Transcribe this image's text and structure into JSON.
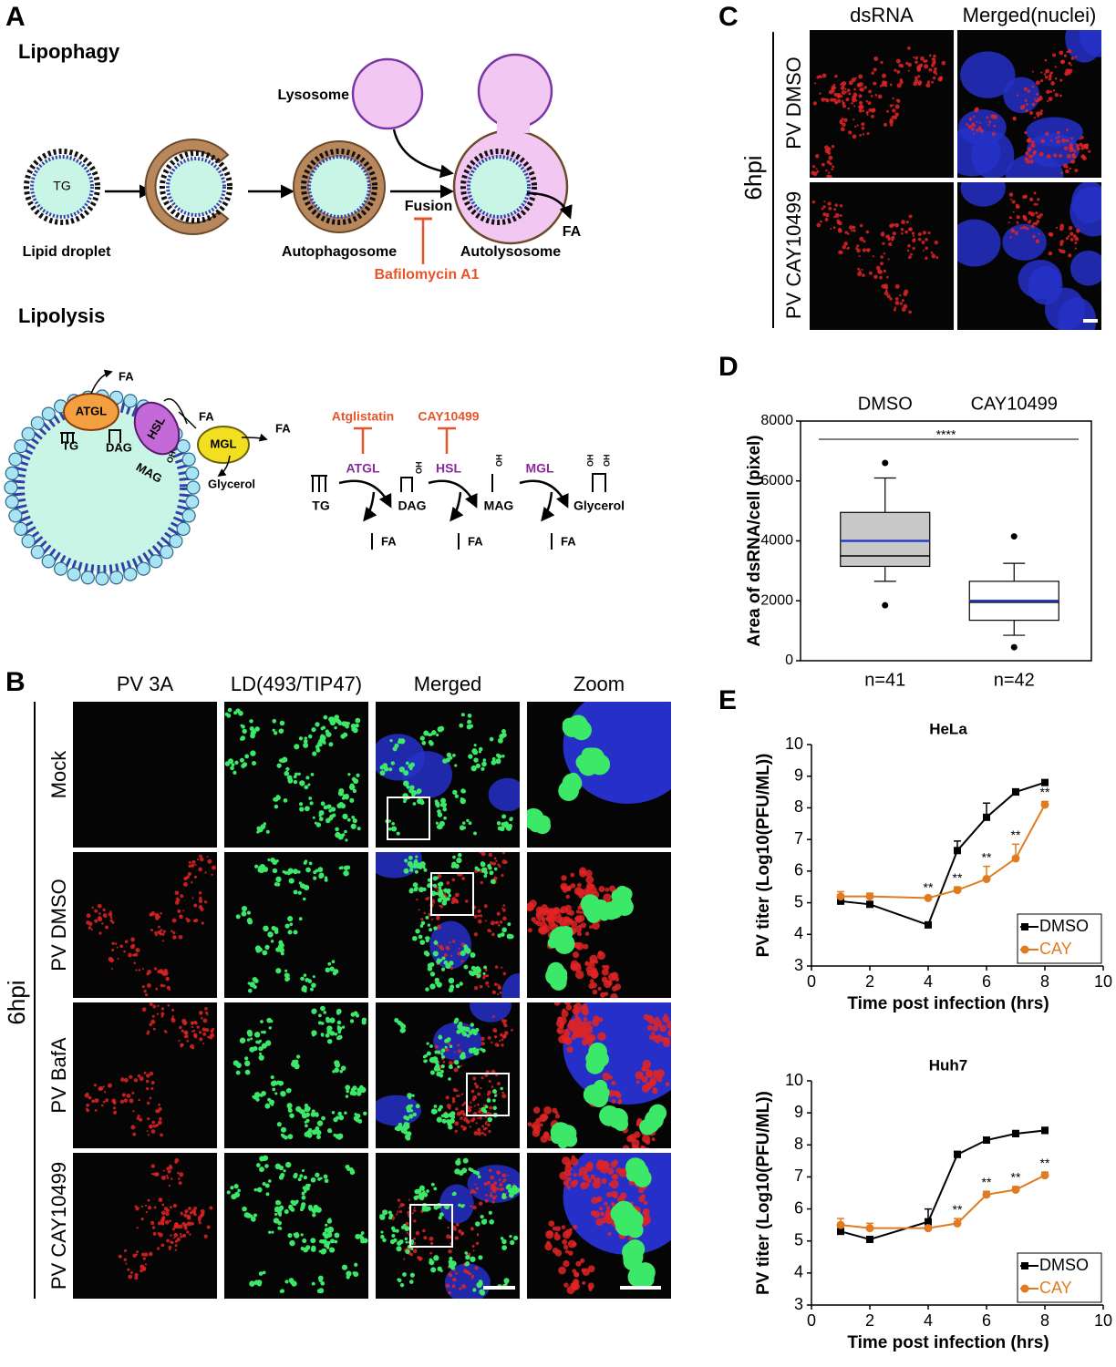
{
  "panel_labels": [
    "A",
    "B",
    "C",
    "D",
    "E"
  ],
  "diagram": {
    "lipophagy": "Lipophagy",
    "lysosome": "Lysosome",
    "tg": "TG",
    "lipid_droplet": "Lipid droplet",
    "autophagosome": "Autophagosome",
    "fusion": "Fusion",
    "autolysosome": "Autolysosome",
    "fa": "FA",
    "bafilomycin": "Bafilomycin A1",
    "lipolysis": "Lipolysis",
    "droplet": {
      "enzymes": [
        "ATGL",
        "HSL",
        "MGL"
      ],
      "lipids": [
        "TG",
        "DAG",
        "MAG",
        "Glycerol"
      ],
      "fa": "FA",
      "oh": "OH"
    },
    "pathway": {
      "inhibitors": [
        "Atglistatin",
        "CAY10499"
      ],
      "enzymes": [
        "ATGL",
        "HSL",
        "MGL"
      ],
      "lipids": [
        "TG",
        "DAG",
        "MAG",
        "Glycerol"
      ],
      "fa": "FA"
    }
  },
  "panel_b": {
    "columns": [
      "PV 3A",
      "LD(493/TIP47)",
      "Merged",
      "Zoom"
    ],
    "rows": [
      "Mock",
      "PV DMSO",
      "PV BafA",
      "PV CAY10499"
    ],
    "timepoint": "6hpi"
  },
  "panel_c": {
    "columns": [
      "dsRNA",
      "Merged(nuclei)"
    ],
    "rows": [
      "PV DMSO",
      "PV CAY10499"
    ],
    "timepoint": "6hpi"
  },
  "chart_data": [
    {
      "type": "box",
      "ylabel": "Area of dsRNA/cell (pixel)",
      "categories": [
        "DMSO",
        "CAY10499"
      ],
      "counts": [
        "n=41",
        "n=42"
      ],
      "significance": "****",
      "mean_color": "#2a3fc0",
      "box_colors": [
        "#c8c8c8",
        "#ffffff"
      ],
      "boxes": [
        {
          "min": 2650,
          "q1": 3150,
          "median": 3500,
          "mean": 4000,
          "q3": 4950,
          "max": 6100,
          "outliers": [
            1850,
            6600
          ]
        },
        {
          "min": 850,
          "q1": 1350,
          "median": 1950,
          "mean": 2000,
          "q3": 2650,
          "max": 3250,
          "outliers": [
            450,
            4150
          ]
        }
      ],
      "ylim": [
        0,
        8000
      ],
      "yticks": [
        0,
        2000,
        4000,
        6000,
        8000
      ]
    },
    {
      "type": "line",
      "title": "HeLa",
      "xlabel": "Time post infection (hrs)",
      "ylabel": "PV titer (Log10(PFU/ML))",
      "x": [
        1,
        2,
        4,
        5,
        6,
        7,
        8
      ],
      "series": [
        {
          "name": "DMSO",
          "color": "#000000",
          "marker": "square",
          "values": [
            5.05,
            4.95,
            4.3,
            6.65,
            7.7,
            8.5,
            8.8
          ],
          "errors": [
            0.05,
            0.05,
            0.05,
            0.3,
            0.45,
            0.1,
            0.05
          ]
        },
        {
          "name": "CAY",
          "color": "#e07b20",
          "marker": "circle",
          "values": [
            5.2,
            5.2,
            5.15,
            5.4,
            5.75,
            6.4,
            8.1
          ],
          "errors": [
            0.15,
            0.1,
            0.05,
            0.1,
            0.4,
            0.45,
            0.1
          ],
          "annotations": [
            {
              "x": 4,
              "label": "**"
            },
            {
              "x": 5,
              "label": "**"
            },
            {
              "x": 6,
              "label": "**"
            },
            {
              "x": 7,
              "label": "**"
            },
            {
              "x": 8,
              "label": "**"
            }
          ]
        }
      ],
      "xlim": [
        0,
        10
      ],
      "xticks": [
        0,
        2,
        4,
        6,
        8,
        10
      ],
      "ylim": [
        3,
        10
      ],
      "yticks": [
        3,
        4,
        5,
        6,
        7,
        8,
        9,
        10
      ],
      "legend": "bottom right"
    },
    {
      "type": "line",
      "title": "Huh7",
      "xlabel": "Time post infection (hrs)",
      "ylabel": "PV titer (Log10(PFU/ML))",
      "x": [
        1,
        2,
        4,
        5,
        6,
        7,
        8
      ],
      "series": [
        {
          "name": "DMSO",
          "color": "#000000",
          "marker": "square",
          "values": [
            5.3,
            5.05,
            5.6,
            7.7,
            8.15,
            8.35,
            8.45
          ],
          "errors": [
            0.05,
            0.05,
            0.4,
            0.1,
            0.05,
            0.1,
            0.1
          ]
        },
        {
          "name": "CAY",
          "color": "#e07b20",
          "marker": "circle",
          "values": [
            5.5,
            5.4,
            5.4,
            5.55,
            6.45,
            6.6,
            7.05
          ],
          "errors": [
            0.2,
            0.15,
            0.05,
            0.15,
            0.1,
            0.1,
            0.1
          ],
          "annotations": [
            {
              "x": 5,
              "label": "**"
            },
            {
              "x": 6,
              "label": "**"
            },
            {
              "x": 7,
              "label": "**"
            },
            {
              "x": 8,
              "label": "**"
            }
          ]
        }
      ],
      "xlim": [
        0,
        10
      ],
      "xticks": [
        0,
        2,
        4,
        6,
        8,
        10
      ],
      "ylim": [
        3,
        10
      ],
      "yticks": [
        3,
        4,
        5,
        6,
        7,
        8,
        9,
        10
      ],
      "legend": "bottom right"
    }
  ]
}
